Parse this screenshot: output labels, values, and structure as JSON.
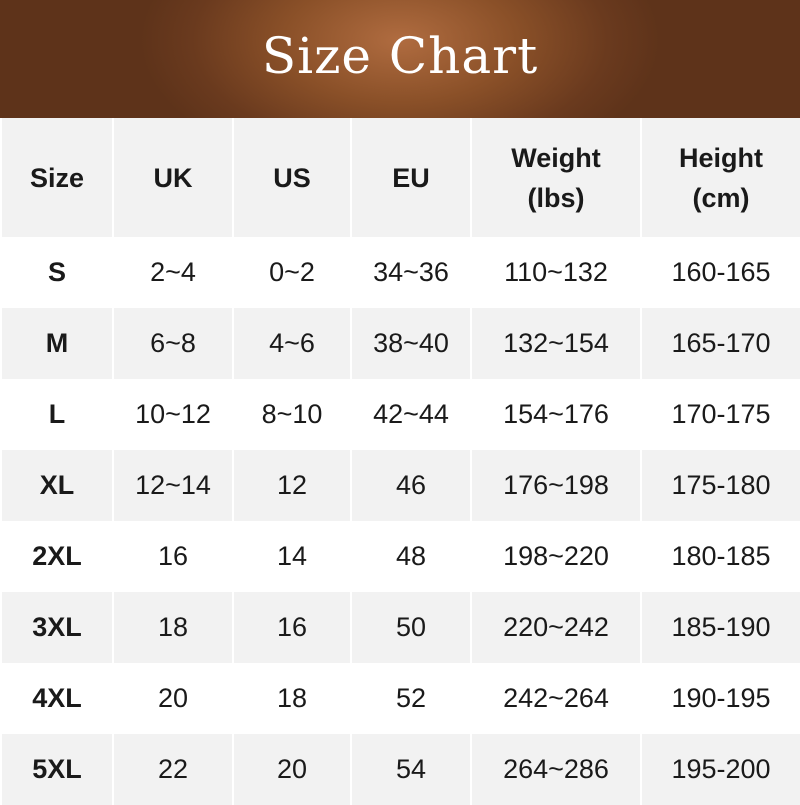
{
  "title": "Size Chart",
  "headers": [
    "Size",
    "UK",
    "US",
    "EU",
    "Weight\n(lbs)",
    "Height\n(cm)"
  ],
  "rows": [
    [
      "S",
      "2~4",
      "0~2",
      "34~36",
      "110~132",
      "160-165"
    ],
    [
      "M",
      "6~8",
      "4~6",
      "38~40",
      "132~154",
      "165-170"
    ],
    [
      "L",
      "10~12",
      "8~10",
      "42~44",
      "154~176",
      "170-175"
    ],
    [
      "XL",
      "12~14",
      "12",
      "46",
      "176~198",
      "175-180"
    ],
    [
      "2XL",
      "16",
      "14",
      "48",
      "198~220",
      "180-185"
    ],
    [
      "3XL",
      "18",
      "16",
      "50",
      "220~242",
      "185-190"
    ],
    [
      "4XL",
      "20",
      "18",
      "52",
      "242~264",
      "190-195"
    ],
    [
      "5XL",
      "22",
      "20",
      "54",
      "264~286",
      "195-200"
    ]
  ],
  "colors": {
    "banner": "#7a4424",
    "header_row": "#f2f2f2"
  }
}
